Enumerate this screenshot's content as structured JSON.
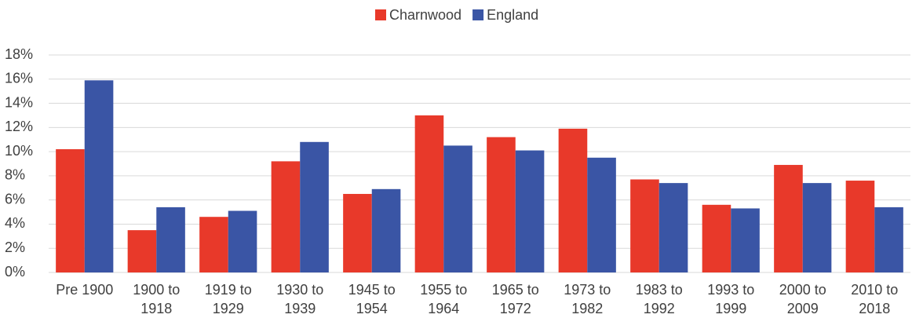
{
  "chart_data": {
    "type": "bar",
    "categories": [
      "Pre 1900",
      "1900 to 1918",
      "1919 to 1929",
      "1930 to 1939",
      "1945 to 1954",
      "1955 to 1964",
      "1965 to 1972",
      "1973 to 1982",
      "1983 to 1992",
      "1993 to 1999",
      "2000 to 2009",
      "2010 to 2018"
    ],
    "series": [
      {
        "name": "Charnwood",
        "color": "#e8392a",
        "values": [
          10.2,
          3.5,
          4.6,
          9.2,
          6.5,
          13.0,
          11.2,
          11.9,
          7.7,
          5.6,
          8.9,
          7.6
        ]
      },
      {
        "name": "England",
        "color": "#3a55a5",
        "values": [
          15.9,
          5.4,
          5.1,
          10.8,
          6.9,
          10.5,
          10.1,
          9.5,
          7.4,
          5.3,
          7.4,
          5.4
        ]
      }
    ],
    "ylim": [
      0,
      18
    ],
    "yticks": [
      {
        "value": 0,
        "label": "0%"
      },
      {
        "value": 2,
        "label": "2%"
      },
      {
        "value": 4,
        "label": "4%"
      },
      {
        "value": 6,
        "label": "6%"
      },
      {
        "value": 8,
        "label": "8%"
      },
      {
        "value": 10,
        "label": "10%"
      },
      {
        "value": 12,
        "label": "12%"
      },
      {
        "value": 14,
        "label": "14%"
      },
      {
        "value": 16,
        "label": "16%"
      },
      {
        "value": 18,
        "label": "18%"
      }
    ],
    "grid": true,
    "legend": "top"
  }
}
